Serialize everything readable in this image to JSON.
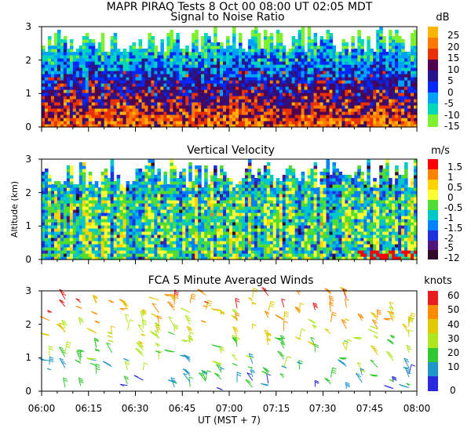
{
  "header": {
    "title": "MAPR PIRAQ Tests  8 Oct 00  08:00 UT  02:05  MDT"
  },
  "chart_data": [
    {
      "type": "heatmap",
      "title": "Signal to Noise Ratio",
      "xlabel": "UT  (MST + 7)",
      "ylabel": "",
      "xlim": [
        0,
        120
      ],
      "ylim": [
        0,
        3
      ],
      "y_ticks": [
        "0",
        "1",
        "2",
        "3"
      ],
      "colorbar_unit": "dB",
      "colorbar_labels": [
        "25",
        "20",
        "15",
        "10",
        "5",
        "0",
        "-5",
        "-10",
        "-15"
      ],
      "colorbar_colors": [
        "#ffb400",
        "#ff7800",
        "#e83000",
        "#500050",
        "#28148c",
        "#0028ff",
        "#00a0ff",
        "#00d7b9",
        "#7df030"
      ]
    },
    {
      "type": "heatmap",
      "title": "Vertical Velocity",
      "xlabel": "UT  (MST + 7)",
      "ylabel": "Altitude (km)",
      "xlim": [
        0,
        120
      ],
      "ylim": [
        0,
        3
      ],
      "y_ticks": [
        "0",
        "1",
        "2",
        "3"
      ],
      "colorbar_unit": "m/s",
      "colorbar_labels": [
        "1.5",
        "1",
        "0.5",
        "0",
        "-0.5",
        "-1",
        "-1.5",
        "-2",
        "-5",
        "-12"
      ],
      "colorbar_colors": [
        "#ff0000",
        "#ff8200",
        "#ffd200",
        "#ffff32",
        "#50dc32",
        "#00c8c8",
        "#0082ff",
        "#1e32dc",
        "#50147d",
        "#320a28"
      ]
    },
    {
      "type": "scatter",
      "title": "FCA 5 Minute Averaged Winds",
      "xlabel": "UT  (MST + 7)",
      "ylabel": "",
      "xlim": [
        0,
        120
      ],
      "ylim": [
        0,
        3
      ],
      "y_ticks": [
        "0",
        "1",
        "2",
        "3"
      ],
      "colorbar_unit": "knots",
      "colorbar_labels": [
        "60",
        "50",
        "40",
        "30",
        "20",
        "10",
        "0"
      ],
      "colorbar_colors": [
        "#e61e1e",
        "#ff8c00",
        "#e1c800",
        "#afe61e",
        "#32c832",
        "#1e96c8",
        "#2828dc"
      ]
    }
  ],
  "x_axis": {
    "ticks": [
      "06:00",
      "06:15",
      "06:30",
      "06:45",
      "07:00",
      "07:15",
      "07:30",
      "07:45",
      "08:00"
    ],
    "label": "UT  (MST + 7)"
  }
}
